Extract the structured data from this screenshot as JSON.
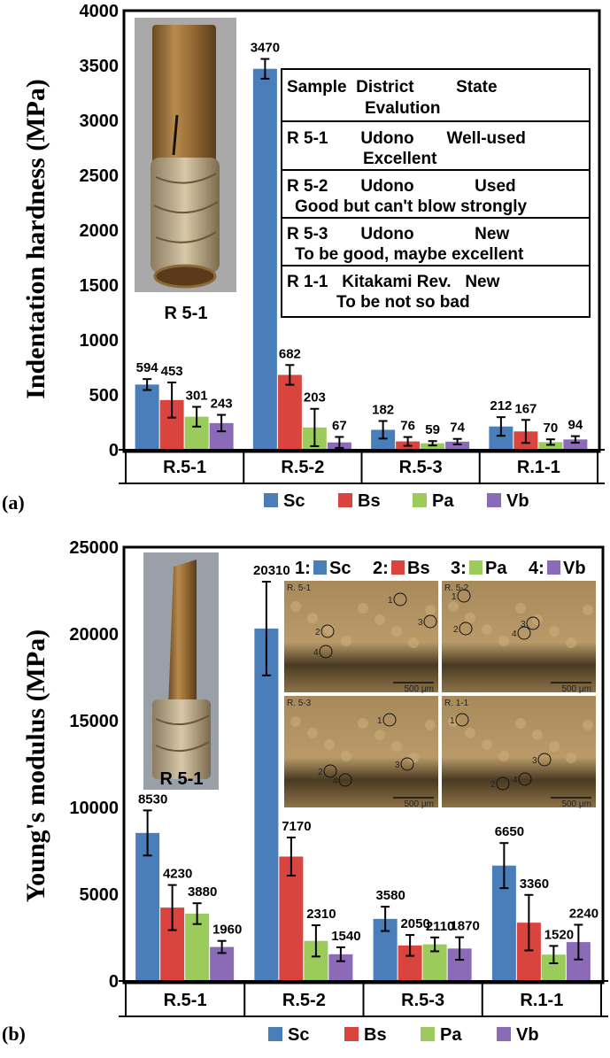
{
  "chart_data": [
    {
      "type": "bar",
      "panel_label": "(a)",
      "ylabel": "Indentation hardness (MPa)",
      "ylim": [
        0,
        4000
      ],
      "yticks": [
        0,
        500,
        1000,
        1500,
        2000,
        2500,
        3000,
        3500,
        4000
      ],
      "categories": [
        "R.5-1",
        "R.5-2",
        "R.5-3",
        "R.1-1"
      ],
      "series": [
        {
          "name": "Sc",
          "color": "#4a7ebb",
          "values": [
            594,
            3470,
            182,
            212
          ],
          "errors": [
            50,
            90,
            80,
            85
          ]
        },
        {
          "name": "Bs",
          "color": "#d9443f",
          "values": [
            453,
            682,
            76,
            167
          ],
          "errors": [
            160,
            90,
            40,
            105
          ]
        },
        {
          "name": "Pa",
          "color": "#9bcc5b",
          "values": [
            301,
            203,
            59,
            70
          ],
          "errors": [
            90,
            170,
            20,
            25
          ]
        },
        {
          "name": "Vb",
          "color": "#8b6bb8",
          "values": [
            243,
            67,
            74,
            94
          ],
          "errors": [
            75,
            50,
            25,
            30
          ]
        }
      ],
      "labels": [
        [
          "594",
          "3470",
          "182",
          "212"
        ],
        [
          "453",
          "682",
          "76",
          "167"
        ],
        [
          "301",
          "203",
          "59",
          "70"
        ],
        [
          "243",
          "67",
          "74",
          "94"
        ]
      ],
      "photo_caption": "R 5-1",
      "table": {
        "header": [
          "Sample  District         State",
          "Evalution"
        ],
        "rows": [
          [
            "R 5-1       Udono       Well-used",
            "Excellent"
          ],
          [
            "R 5-2       Udono             Used",
            "Good but can't blow strongly"
          ],
          [
            "R 5-3       Udono             New",
            "To be good, maybe excellent"
          ],
          [
            "R 1-1   Kitakami Rev.   New",
            "To be not so bad"
          ]
        ]
      }
    },
    {
      "type": "bar",
      "panel_label": "(b)",
      "ylabel": "Young's modulus (MPa)",
      "ylim": [
        0,
        25000
      ],
      "yticks": [
        0,
        5000,
        10000,
        15000,
        20000,
        25000
      ],
      "categories": [
        "R.5-1",
        "R.5-2",
        "R.5-3",
        "R.1-1"
      ],
      "series": [
        {
          "name": "Sc",
          "color": "#4a7ebb",
          "values": [
            8530,
            20310,
            3580,
            6650
          ],
          "errors": [
            1300,
            2700,
            700,
            1300
          ]
        },
        {
          "name": "Bs",
          "color": "#d9443f",
          "values": [
            4230,
            7170,
            2050,
            3360
          ],
          "errors": [
            1300,
            1100,
            600,
            1600
          ]
        },
        {
          "name": "Pa",
          "color": "#9bcc5b",
          "values": [
            3880,
            2310,
            2110,
            1520
          ],
          "errors": [
            600,
            900,
            400,
            500
          ]
        },
        {
          "name": "Vb",
          "color": "#8b6bb8",
          "values": [
            1960,
            1540,
            1870,
            2240
          ],
          "errors": [
            350,
            400,
            650,
            1000
          ]
        }
      ],
      "labels": [
        [
          "8530",
          "20310",
          "3580",
          "6650"
        ],
        [
          "4230",
          "7170",
          "2050",
          "3360"
        ],
        [
          "3880",
          "2310",
          "2110",
          "1520"
        ],
        [
          "1960",
          "1540",
          "1870",
          "2240"
        ]
      ],
      "photo_caption": "R 5-1",
      "inset_legend": [
        {
          "num": "1:",
          "name": "Sc"
        },
        {
          "num": "2:",
          "name": "Bs"
        },
        {
          "num": "3:",
          "name": "Pa"
        },
        {
          "num": "4:",
          "name": "Vb"
        }
      ],
      "micrographs": [
        {
          "label": "R. 5-1",
          "scale": "500 μm",
          "marks": [
            "1",
            "2",
            "3",
            "4"
          ]
        },
        {
          "label": "R. 5-2",
          "scale": "500 μm",
          "marks": [
            "1",
            "3",
            "2",
            "4"
          ]
        },
        {
          "label": "R. 5-3",
          "scale": "500 μm",
          "marks": [
            "1",
            "3",
            "2",
            "4"
          ]
        },
        {
          "label": "R. 1-1",
          "scale": "500 μm",
          "marks": [
            "1",
            "3",
            "2",
            "4"
          ]
        }
      ]
    }
  ]
}
